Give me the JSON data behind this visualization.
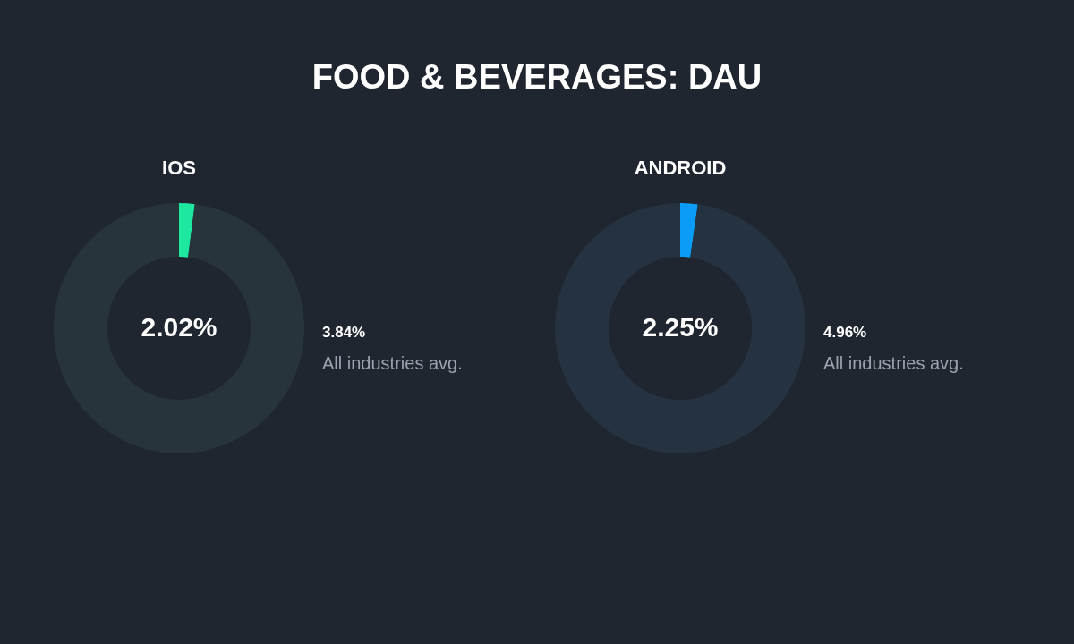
{
  "chart_data": [
    {
      "type": "other",
      "title": "FOOD & BEVERAGES: DAU"
    },
    {
      "type": "donut",
      "title": "IOS",
      "categories": [
        null,
        null
      ],
      "values": [
        2.02,
        97.98
      ],
      "colors": [
        "#1ee8a0",
        "#27343a"
      ],
      "value_labels": [
        "2.02%",
        null
      ],
      "annotations": [
        "3.84%",
        "All industries avg."
      ]
    },
    {
      "type": "donut",
      "title": "ANDROID",
      "categories": [
        null,
        null
      ],
      "values": [
        2.25,
        97.75
      ],
      "colors": [
        "#0a9cf7",
        "#253241"
      ],
      "value_labels": [
        "2.25%",
        null
      ],
      "annotations": [
        "4.96%",
        "All industries avg."
      ]
    }
  ]
}
